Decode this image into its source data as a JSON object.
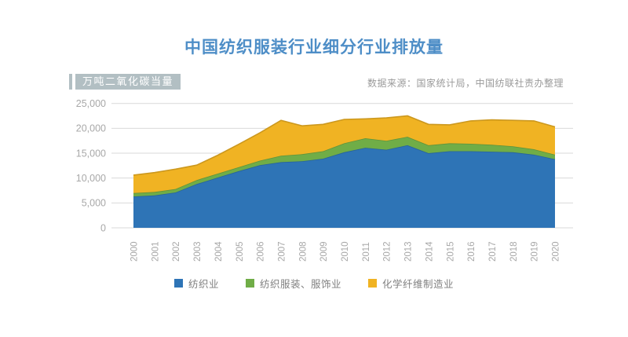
{
  "page": {
    "title": "中国纺织服装行业细分行业排放量",
    "unit_label": "万吨二氧化碳当量",
    "source": "数据来源：国家统计局，中国纺联社责办整理"
  },
  "colors": {
    "title_text": "#4E8EC7",
    "badge_bg": "#B2BFC3",
    "badge_accent": "#B2BFC3",
    "badge_text": "#FFFFFF",
    "axis_text": "#A8A8A8",
    "gridline": "#D9D9D9",
    "legend_text": "#7F7F7F",
    "source_text": "#9A9A9A",
    "series_blue": "#2E74B6",
    "series_green": "#70AD47",
    "series_gold": "#F0B323"
  },
  "legend": {
    "items": [
      {
        "label": "纺织业"
      },
      {
        "label": "纺织服装、服饰业"
      },
      {
        "label": "化学纤维制造业"
      }
    ]
  },
  "chart_data": {
    "type": "area",
    "stacked": true,
    "title": "中国纺织服装行业细分行业排放量",
    "ylabel": "万吨二氧化碳当量",
    "xlabel": "",
    "x": [
      "2000",
      "2001",
      "2002",
      "2003",
      "2004",
      "2005",
      "2006",
      "2007",
      "2008",
      "2009",
      "2010",
      "2011",
      "2012",
      "2013",
      "2014",
      "2015",
      "2016",
      "2017",
      "2018",
      "2019",
      "2020"
    ],
    "series": [
      {
        "name": "纺织业",
        "color": "#2E74B6",
        "values": [
          6300,
          6500,
          7100,
          8800,
          10100,
          11400,
          12600,
          13200,
          13400,
          13900,
          15200,
          16100,
          15700,
          16600,
          15000,
          15400,
          15400,
          15300,
          15200,
          14700,
          13800
        ]
      },
      {
        "name": "纺织服装、服饰业",
        "color": "#70AD47",
        "values": [
          700,
          700,
          700,
          800,
          800,
          800,
          900,
          1300,
          1400,
          1500,
          1800,
          1900,
          1800,
          1700,
          1600,
          1600,
          1500,
          1400,
          1200,
          1100,
          900
        ]
      },
      {
        "name": "化学纤维制造业",
        "color": "#F0B323",
        "values": [
          3600,
          3900,
          4000,
          3000,
          3700,
          4600,
          5600,
          7100,
          5700,
          5400,
          4800,
          3900,
          4600,
          4200,
          4200,
          3700,
          4600,
          5000,
          5200,
          5700,
          5600
        ]
      }
    ],
    "ylim": [
      0,
      25000
    ],
    "yticks": [
      0,
      5000,
      10000,
      15000,
      20000,
      25000
    ],
    "grid": "horizontal",
    "legend_position": "bottom",
    "x_label_rotation": -90
  }
}
